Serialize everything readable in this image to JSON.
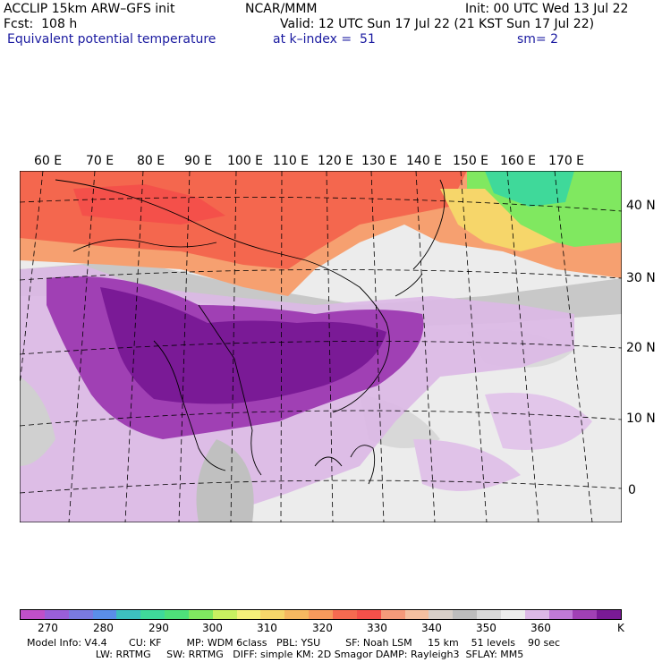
{
  "header": {
    "model": "ACCLIP 15km ARW–GFS init",
    "org": "NCAR/MMM",
    "init": "Init: 00 UTC Wed 13 Jul 22",
    "fcst": "Fcst:  108 h",
    "valid": "Valid: 12 UTC Sun 17 Jul 22 (21 KST Sun 17 Jul 22)",
    "field": "Equivalent potential temperature",
    "level": "at k–index =  51",
    "smooth": "sm= 2"
  },
  "map": {
    "lon_labels": [
      "60 E",
      "70 E",
      "80 E",
      "90 E",
      "100 E",
      "110 E",
      "120 E",
      "130 E",
      "140 E",
      "150 E",
      "160 E",
      "170 E"
    ],
    "lat_labels": [
      "40 N",
      "30 N",
      "20 N",
      "10 N",
      "0"
    ]
  },
  "colorbar": {
    "unit": "K",
    "ticks": [
      "270",
      "280",
      "290",
      "300",
      "310",
      "320",
      "330",
      "340",
      "350",
      "360"
    ],
    "colors": [
      "#c04fc9",
      "#9a5fd9",
      "#7a7ae0",
      "#5a8ee8",
      "#3dbfbf",
      "#3fd99a",
      "#4ee07a",
      "#80e860",
      "#c8f060",
      "#f4f07a",
      "#f6d66a",
      "#f6b860",
      "#f79a5c",
      "#f66a50",
      "#f4504a",
      "#f49a7a",
      "#f4c0a0",
      "#d8cfc8",
      "#bdbdbd",
      "#d8d8d8",
      "#ececec",
      "#dcb8e6",
      "#c07ad6",
      "#a040b4",
      "#7a1a96"
    ]
  },
  "footer": {
    "line1": "Model Info: V4.4       CU: KF        MP: WDM 6class   PBL: YSU        SF: Noah LSM     15 km    51 levels    90 sec",
    "line2": "                      LW: RRTMG     SW: RRTMG   DIFF: simple KM: 2D Smagor DAMP: Rayleigh3  SFLAY: MM5"
  }
}
